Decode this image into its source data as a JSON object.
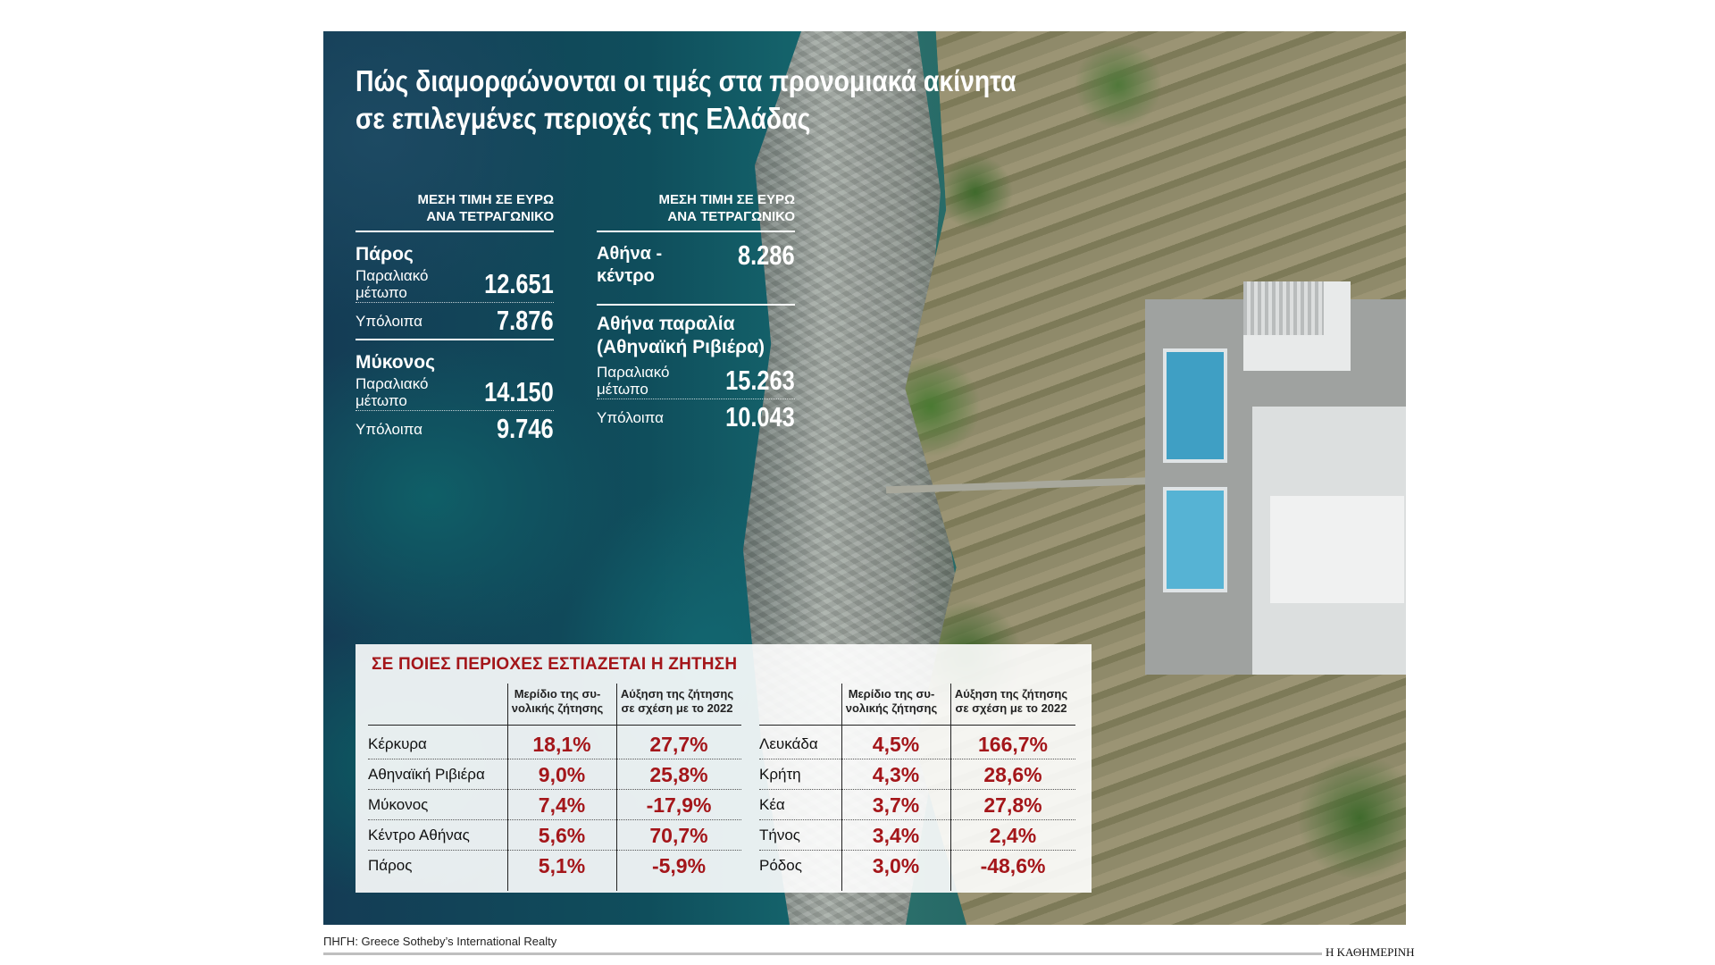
{
  "title": {
    "line1": "Πώς διαμορφώνονται οι τιμές στα προνομιακά ακίνητα",
    "line2": "σε επιλεγμένες περιοχές της Ελλάδας"
  },
  "prices_left": {
    "header_line1": "ΜΕΣΗ ΤΙΜΗ ΣΕ ΕΥΡΩ",
    "header_line2": "ΑΝΑ ΤΕΤΡΑΓΩΝΙΚΟ",
    "regions": [
      {
        "name": "Πάρος",
        "rows": [
          {
            "label1": "Παραλιακό",
            "label2": "μέτωπο",
            "value": "12.651"
          },
          {
            "label1": "Υπόλοιπα",
            "value": "7.876"
          }
        ]
      },
      {
        "name": "Μύκονος",
        "rows": [
          {
            "label1": "Παραλιακό",
            "label2": "μέτωπο",
            "value": "14.150"
          },
          {
            "label1": "Υπόλοιπα",
            "value": "9.746"
          }
        ]
      }
    ]
  },
  "prices_right": {
    "header_line1": "ΜΕΣΗ ΤΙΜΗ ΣΕ ΕΥΡΩ",
    "header_line2": "ΑΝΑ ΤΕΤΡΑΓΩΝΙΚΟ",
    "athens_center": {
      "label1": "Αθήνα -",
      "label2": "κέντρο",
      "value": "8.286"
    },
    "riviera": {
      "name1": "Αθήνα παραλία",
      "name2": "(Αθηναϊκή Ριβιέρα)",
      "rows": [
        {
          "label1": "Παραλιακό",
          "label2": "μέτωπο",
          "value": "15.263"
        },
        {
          "label1": "Υπόλοιπα",
          "value": "10.043"
        }
      ]
    }
  },
  "demand": {
    "title": "ΣΕ ΠΟΙΕΣ ΠΕΡΙΟΧΕΣ ΕΣΤΙΑΖΕΤΑΙ Η ΖΗΤΗΣΗ",
    "col_share_1": "Μερίδιο της συ-",
    "col_share_2": "νολικής ζήτησης",
    "col_growth_1": "Αύξηση της ζήτησης",
    "col_growth_2": "σε σχέση με το 2022",
    "left": [
      {
        "area": "Κέρκυρα",
        "share": "18,1%",
        "growth": "27,7%"
      },
      {
        "area": "Αθηναϊκή Ριβιέρα",
        "share": "9,0%",
        "growth": "25,8%"
      },
      {
        "area": "Μύκονος",
        "share": "7,4%",
        "growth": "-17,9%"
      },
      {
        "area": "Κέντρο Αθήνας",
        "share": "5,6%",
        "growth": "70,7%"
      },
      {
        "area": "Πάρος",
        "share": "5,1%",
        "growth": "-5,9%"
      }
    ],
    "right": [
      {
        "area": "Λευκάδα",
        "share": "4,5%",
        "growth": "166,7%"
      },
      {
        "area": "Κρήτη",
        "share": "4,3%",
        "growth": "28,6%"
      },
      {
        "area": "Κέα",
        "share": "3,7%",
        "growth": "27,8%"
      },
      {
        "area": "Τήνος",
        "share": "3,4%",
        "growth": "2,4%"
      },
      {
        "area": "Ρόδος",
        "share": "3,0%",
        "growth": "-48,6%"
      }
    ]
  },
  "footer": {
    "source": "ΠΗΓΗ: Greece Sotheby’s International Realty",
    "publisher": "Η ΚΑΘΗΜΕΡΙΝΗ"
  },
  "colors": {
    "accent_red": "#a4161a",
    "text_white": "#ffffff",
    "panel_bg": "#ffffff"
  }
}
